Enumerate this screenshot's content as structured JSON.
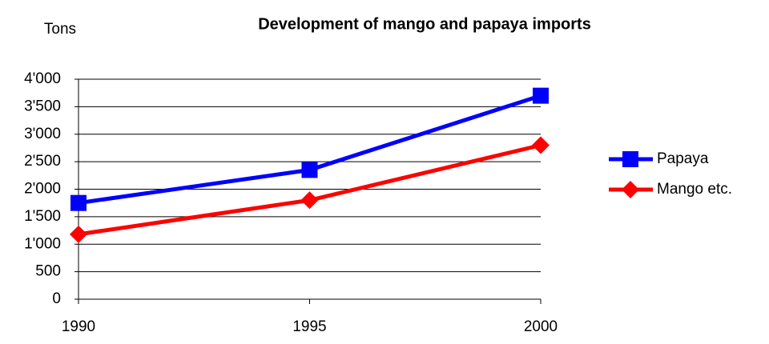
{
  "chart_data": {
    "type": "line",
    "title": "Development of mango and papaya imports",
    "y_label": "Tons",
    "x": [
      1990,
      1995,
      2000
    ],
    "xlim": [
      1990,
      2000
    ],
    "xticks": [
      1990,
      1995,
      2000
    ],
    "ylim": [
      0,
      4000
    ],
    "yticks": [
      0,
      500,
      {
        "value": 1000,
        "label": "1'000"
      },
      {
        "value": 1500,
        "label": "1'500"
      },
      {
        "value": 2000,
        "label": "2'000"
      },
      {
        "value": 2500,
        "label": "2'500"
      },
      {
        "value": 3000,
        "label": "3'000"
      },
      {
        "value": 3500,
        "label": "3'500"
      },
      {
        "value": 4000,
        "label": "4'000"
      }
    ],
    "grid": true,
    "legend": "right",
    "series": [
      {
        "name": "Papaya",
        "color": "#0000ff",
        "marker": "square",
        "values": [
          1750,
          2350,
          3700
        ]
      },
      {
        "name": "Mango etc.",
        "color": "#ff0000",
        "marker": "diamond",
        "values": [
          1180,
          1800,
          2800
        ]
      }
    ]
  }
}
